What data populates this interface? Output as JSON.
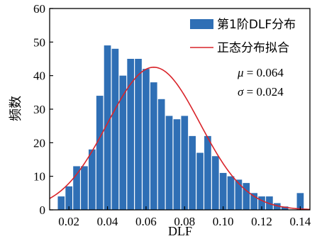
{
  "chart_data": {
    "type": "bar",
    "subtype": "histogram-with-normal-fit",
    "xlabel": "DLF",
    "ylabel": "频数",
    "xlim": [
      0.01,
      0.145
    ],
    "ylim": [
      0,
      60
    ],
    "xticks": [
      0.02,
      0.04,
      0.06,
      0.08,
      0.1,
      0.12,
      0.14
    ],
    "xtick_labels": [
      "0.02",
      "0.04",
      "0.06",
      "0.08",
      "0.10",
      "0.12",
      "0.14"
    ],
    "yticks": [
      0,
      10,
      20,
      30,
      40,
      50,
      60
    ],
    "ytick_labels": [
      "0",
      "10",
      "20",
      "30",
      "40",
      "50",
      "60"
    ],
    "grid": false,
    "legend_position": "top-right",
    "series": [
      {
        "name": "第1阶DLF分布",
        "kind": "histogram",
        "color": "#2f6fb5",
        "bin_width": 0.004,
        "bin_centers": [
          0.016,
          0.02,
          0.024,
          0.028,
          0.032,
          0.036,
          0.04,
          0.044,
          0.048,
          0.052,
          0.056,
          0.06,
          0.064,
          0.068,
          0.072,
          0.076,
          0.08,
          0.084,
          0.088,
          0.092,
          0.096,
          0.1,
          0.104,
          0.108,
          0.112,
          0.116,
          0.12,
          0.124,
          0.128,
          0.132,
          0.136,
          0.14
        ],
        "values": [
          4,
          7,
          13,
          13,
          18,
          34,
          49,
          48,
          40,
          45,
          45,
          42,
          38,
          33,
          28,
          27,
          28,
          22,
          17,
          22,
          16,
          11,
          10,
          9,
          8,
          5,
          4,
          4,
          2,
          1,
          0,
          5
        ]
      },
      {
        "name": "正态分布拟合",
        "kind": "normal-fit",
        "color": "#d9242a",
        "mu": 0.064,
        "sigma": 0.024,
        "peak": 42.5
      }
    ],
    "annotations": {
      "mu_symbol": "μ",
      "mu_text": " = 0.064",
      "sigma_symbol": "σ",
      "sigma_text": " = 0.024"
    }
  }
}
